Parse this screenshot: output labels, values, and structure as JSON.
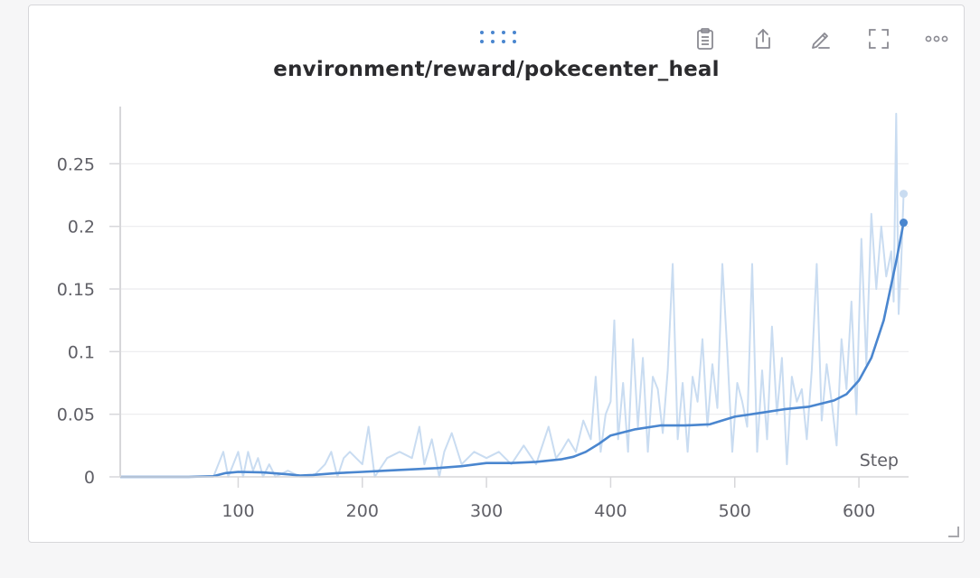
{
  "panel": {
    "title": "environment/reward/pokecenter_heal",
    "toolbar": [
      {
        "icon": "clipboard-icon",
        "name": "copy-button"
      },
      {
        "icon": "share-icon",
        "name": "export-button"
      },
      {
        "icon": "pencil-icon",
        "name": "edit-button"
      },
      {
        "icon": "fullscreen-icon",
        "name": "fullscreen-button"
      },
      {
        "icon": "more-icon",
        "name": "more-button"
      }
    ]
  },
  "chart_data": {
    "type": "line",
    "title": "environment/reward/pokecenter_heal",
    "xlabel": "Step",
    "ylabel": "",
    "xlim": [
      5,
      640
    ],
    "ylim": [
      0,
      0.3
    ],
    "xticks": [
      100,
      200,
      300,
      400,
      500,
      600
    ],
    "xtick_labels": [
      "100",
      "200",
      "300",
      "400",
      "500",
      "600"
    ],
    "yticks": [
      0,
      0.05,
      0.1,
      0.15,
      0.2,
      0.25
    ],
    "ytick_labels": [
      "0",
      "0.05",
      "0.1",
      "0.15",
      "0.2",
      "0.25"
    ],
    "grid": true,
    "legend": "none",
    "colors": {
      "smoothed": "#4a86cf",
      "raw": "#c9dcf1"
    },
    "series": [
      {
        "role": "smoothed",
        "x": [
          5,
          60,
          80,
          90,
          100,
          120,
          140,
          150,
          160,
          180,
          200,
          220,
          240,
          260,
          280,
          300,
          320,
          340,
          360,
          370,
          380,
          390,
          400,
          420,
          440,
          460,
          480,
          500,
          520,
          540,
          560,
          580,
          590,
          600,
          610,
          620,
          630,
          636
        ],
        "y": [
          0,
          0,
          0.0005,
          0.003,
          0.004,
          0.0035,
          0.002,
          0.001,
          0.0015,
          0.003,
          0.004,
          0.005,
          0.006,
          0.007,
          0.0085,
          0.011,
          0.011,
          0.012,
          0.014,
          0.016,
          0.02,
          0.026,
          0.033,
          0.038,
          0.041,
          0.041,
          0.042,
          0.048,
          0.051,
          0.054,
          0.056,
          0.061,
          0.066,
          0.077,
          0.095,
          0.125,
          0.172,
          0.203
        ]
      },
      {
        "role": "raw",
        "x": [
          5,
          80,
          88,
          92,
          96,
          100,
          104,
          108,
          112,
          116,
          120,
          125,
          130,
          140,
          150,
          160,
          170,
          175,
          180,
          185,
          190,
          200,
          205,
          210,
          220,
          230,
          240,
          246,
          250,
          256,
          262,
          266,
          272,
          280,
          290,
          300,
          310,
          320,
          330,
          340,
          350,
          356,
          360,
          366,
          372,
          378,
          384,
          388,
          392,
          396,
          400,
          403,
          406,
          410,
          414,
          418,
          422,
          426,
          430,
          434,
          438,
          442,
          446,
          450,
          454,
          458,
          462,
          466,
          470,
          474,
          478,
          482,
          486,
          490,
          494,
          498,
          502,
          506,
          510,
          514,
          518,
          522,
          526,
          530,
          534,
          538,
          542,
          546,
          550,
          554,
          558,
          562,
          566,
          570,
          574,
          578,
          582,
          586,
          590,
          594,
          598,
          602,
          606,
          610,
          614,
          618,
          622,
          626,
          628,
          630,
          632,
          634,
          636
        ],
        "y": [
          0,
          0,
          0.02,
          0,
          0.01,
          0.02,
          0,
          0.02,
          0.005,
          0.015,
          0,
          0.01,
          0,
          0.005,
          0,
          0,
          0.01,
          0.02,
          0,
          0.015,
          0.02,
          0.01,
          0.04,
          0,
          0.015,
          0.02,
          0.015,
          0.04,
          0.01,
          0.03,
          0,
          0.02,
          0.035,
          0.01,
          0.02,
          0.015,
          0.02,
          0.01,
          0.025,
          0.01,
          0.04,
          0.015,
          0.02,
          0.03,
          0.02,
          0.045,
          0.03,
          0.08,
          0.02,
          0.05,
          0.06,
          0.125,
          0.03,
          0.075,
          0.02,
          0.11,
          0.04,
          0.095,
          0.02,
          0.08,
          0.07,
          0.035,
          0.085,
          0.17,
          0.03,
          0.075,
          0.02,
          0.08,
          0.06,
          0.11,
          0.04,
          0.09,
          0.055,
          0.17,
          0.1,
          0.02,
          0.075,
          0.06,
          0.04,
          0.17,
          0.02,
          0.085,
          0.03,
          0.12,
          0.05,
          0.095,
          0.01,
          0.08,
          0.06,
          0.07,
          0.03,
          0.085,
          0.17,
          0.045,
          0.09,
          0.06,
          0.025,
          0.11,
          0.07,
          0.14,
          0.05,
          0.19,
          0.09,
          0.21,
          0.15,
          0.2,
          0.16,
          0.18,
          0.14,
          0.29,
          0.13,
          0.17,
          0.226
        ]
      }
    ],
    "endpoint_markers": [
      {
        "x": 636,
        "y": 0.226,
        "role": "raw"
      },
      {
        "x": 636,
        "y": 0.203,
        "role": "smoothed"
      }
    ]
  }
}
